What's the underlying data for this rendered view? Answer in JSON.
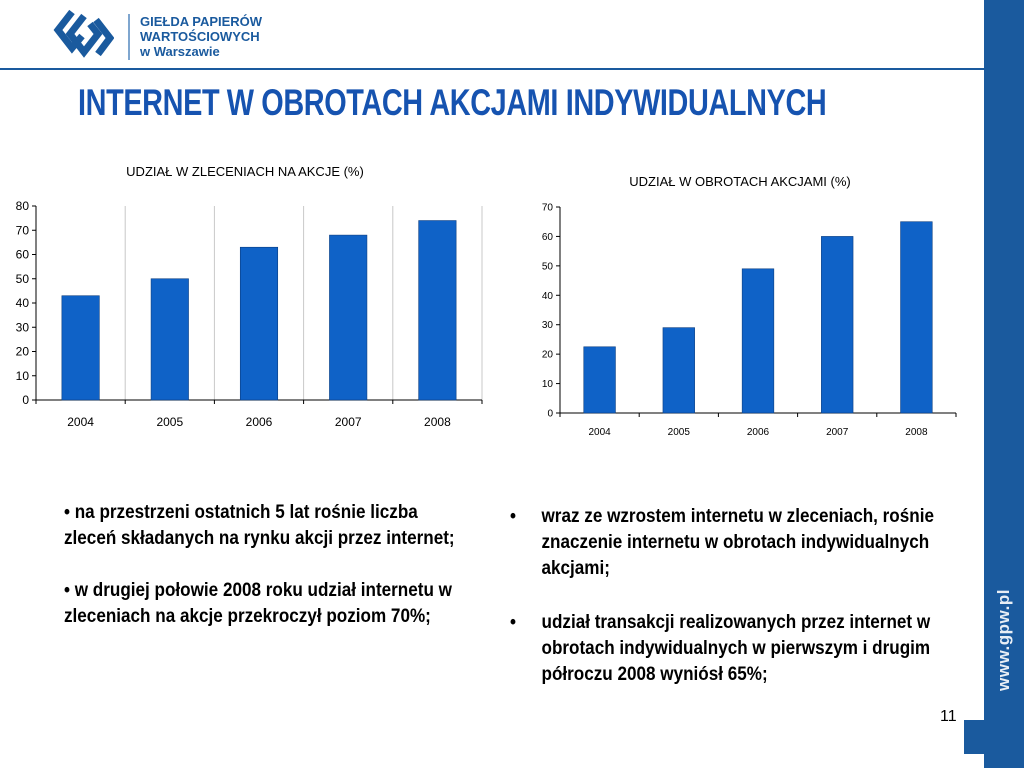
{
  "logo": {
    "line1": "GIEŁDA PAPIERÓW",
    "line2": "WARTOŚCIOWYCH",
    "line3": "w Warszawie"
  },
  "title": "INTERNET W OBROTACH AKCJAMI INDYWIDUALNYCH",
  "sidebar": {
    "url": "www.gpw.pl"
  },
  "colors": {
    "brand": "#1a5a9e",
    "title": "#1653b0",
    "bar": "#0f62c7"
  },
  "chart_data": [
    {
      "type": "bar",
      "title": "UDZIAŁ W ZLECENIACH NA AKCJE (%)",
      "categories": [
        "2004",
        "2005",
        "2006",
        "2007",
        "2008"
      ],
      "values": [
        43,
        50,
        63,
        68,
        74
      ],
      "ylim": [
        0,
        80
      ],
      "yticks": [
        "0",
        "10",
        "20",
        "30",
        "40",
        "50",
        "60",
        "70",
        "80"
      ],
      "grid": "vertical",
      "xlabel": "",
      "ylabel": ""
    },
    {
      "type": "bar",
      "title": "UDZIAŁ W OBROTACH AKCJAMI (%)",
      "categories": [
        "2004",
        "2005",
        "2006",
        "2007",
        "2008"
      ],
      "values": [
        22.5,
        29,
        49,
        60,
        65
      ],
      "ylim": [
        0,
        70
      ],
      "yticks": [
        "0",
        "10",
        "20",
        "30",
        "40",
        "50",
        "60",
        "70"
      ],
      "grid": "none",
      "xlabel": "",
      "ylabel": ""
    }
  ],
  "bullets_left": [
    "• na przestrzeni ostatnich 5 lat rośnie liczba zleceń składanych na rynku akcji przez internet;",
    "• w drugiej połowie 2008 roku udział internetu w zleceniach na akcje przekroczył poziom 70%;"
  ],
  "bullets_right": [
    {
      "mark": "•",
      "text": "wraz ze wzrostem  internetu w zleceniach, rośnie znaczenie internetu w obrotach indywidualnych akcjami;"
    },
    {
      "mark": "•",
      "text": "udział transakcji realizowanych przez internet w obrotach indywidualnych w pierwszym i drugim półroczu 2008 wyniósł 65%;"
    }
  ],
  "page_number": "11"
}
